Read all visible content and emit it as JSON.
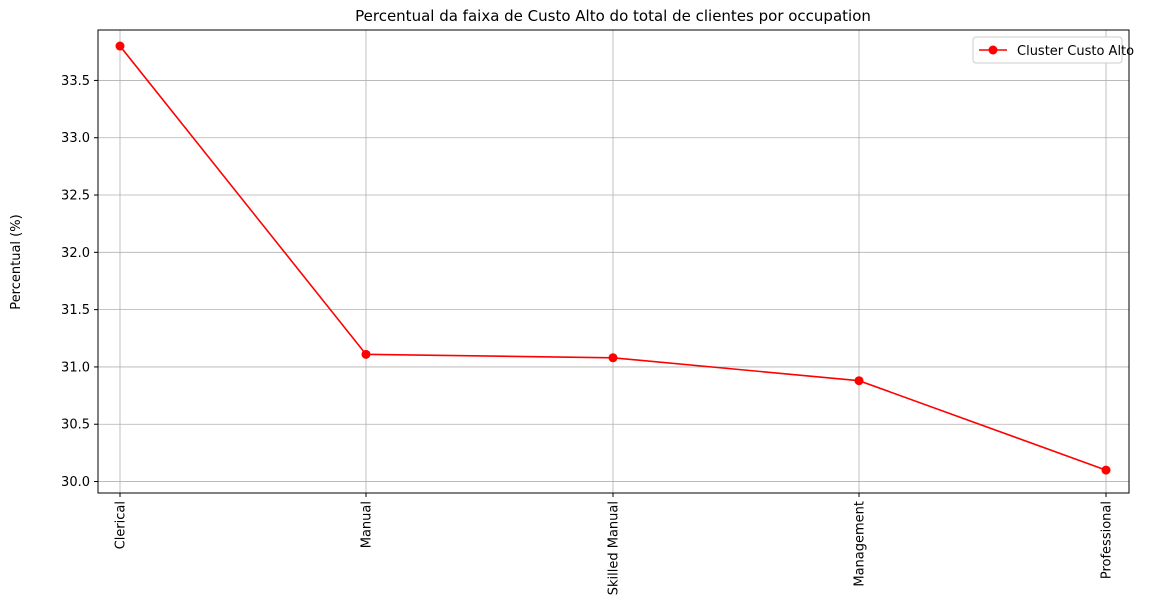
{
  "chart_data": {
    "type": "line",
    "title": "Percentual da faixa de Custo Alto do total de clientes por occupation",
    "xlabel": "",
    "ylabel": "Percentual (%)",
    "categories": [
      "Clerical",
      "Manual",
      "Skilled Manual",
      "Management",
      "Professional"
    ],
    "series": [
      {
        "name": "Cluster Custo Alto",
        "values": [
          33.8,
          31.11,
          31.08,
          30.88,
          30.1
        ],
        "color": "#ff0000",
        "marker": "circle"
      }
    ],
    "ylim": [
      29.9,
      33.94
    ],
    "yticks": [
      "30.0",
      "30.5",
      "31.0",
      "31.5",
      "32.0",
      "32.5",
      "33.0",
      "33.5"
    ],
    "grid": true,
    "legend_position": "top-right",
    "x_tick_rotation": "vertical"
  }
}
